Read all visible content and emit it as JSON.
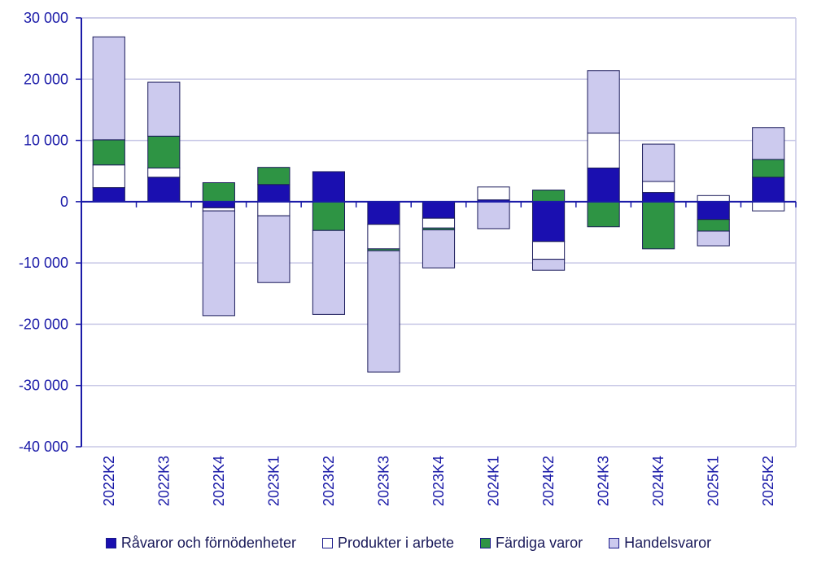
{
  "chart_data": {
    "type": "bar",
    "stacked": true,
    "title": "",
    "xlabel": "",
    "ylabel": "",
    "ylim": [
      -40000,
      30000
    ],
    "yticks": [
      30000,
      20000,
      10000,
      0,
      -10000,
      -20000,
      -30000,
      -40000
    ],
    "ytick_labels": [
      "30 000",
      "20 000",
      "10 000",
      "0",
      "-10 000",
      "-20 000",
      "-30 000",
      "-40 000"
    ],
    "grid": true,
    "legend_position": "bottom",
    "categories": [
      "2022K2",
      "2022K3",
      "2022K4",
      "2023K1",
      "2023K2",
      "2023K3",
      "2023K4",
      "2024K1",
      "2024K2",
      "2024K3",
      "2024K4",
      "2025K1",
      "2025K2"
    ],
    "series": [
      {
        "name": "Råvaror och förnödenheter",
        "color": "#1a0fb0",
        "values": [
          2300,
          4000,
          -1000,
          2800,
          4900,
          -3700,
          -2700,
          300,
          -6500,
          5500,
          1500,
          -2900,
          4000
        ]
      },
      {
        "name": "Produkter i arbete",
        "color": "#ffffff",
        "values": [
          3700,
          1500,
          -500,
          -2300,
          0,
          -4000,
          -1600,
          2100,
          -2900,
          5700,
          1800,
          1000,
          -1500
        ]
      },
      {
        "name": "Färdiga varor",
        "color": "#2e9444",
        "values": [
          4100,
          5200,
          3100,
          2800,
          -4700,
          -300,
          -300,
          0,
          1900,
          -4100,
          -7700,
          -1900,
          2900
        ]
      },
      {
        "name": "Handelsvaror",
        "color": "#cccaee",
        "values": [
          16800,
          8800,
          -17100,
          -10900,
          -13700,
          -19800,
          -6200,
          -4400,
          -1800,
          10200,
          6100,
          -2400,
          5200
        ]
      }
    ]
  },
  "legend": {
    "items": [
      {
        "label": "Råvaror och förnödenheter",
        "color": "#1a0fb0"
      },
      {
        "label": "Produkter i arbete",
        "color": "#ffffff"
      },
      {
        "label": "Färdiga varor",
        "color": "#2e9444"
      },
      {
        "label": "Handelsvaror",
        "color": "#cccaee"
      }
    ]
  }
}
